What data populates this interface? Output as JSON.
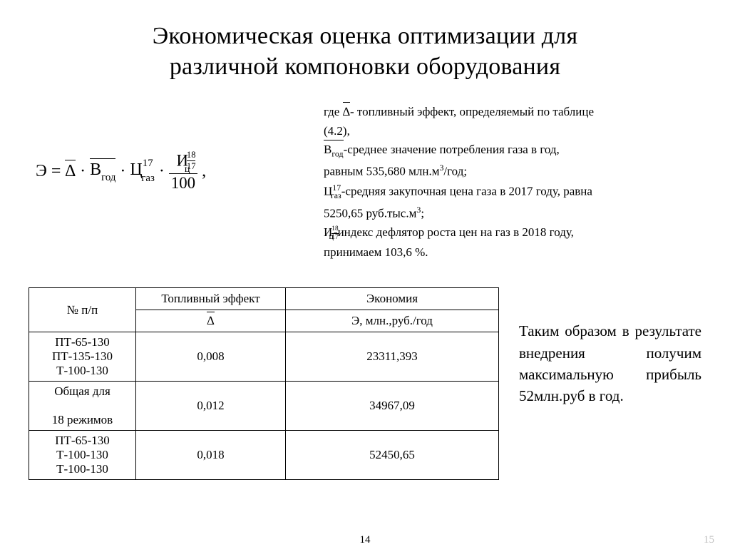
{
  "title_line1": "Экономическая оценка оптимизации для",
  "title_line2": "различной компоновки оборудования",
  "formula": {
    "E": "Э",
    "eq": "=",
    "Delta": "∆",
    "dot": "·",
    "B": "В",
    "B_sub": "год",
    "C": "Ц",
    "C_sub": "газ",
    "C_sup": "17",
    "I": "И",
    "I_sub": "ц",
    "I_sup_top": "18",
    "I_sup_bot": "17",
    "den": "100",
    "comma": ","
  },
  "legend": {
    "l1a": "где ",
    "l1b": "- топливный эффект, определяемый по таблице",
    "l2": "(4.2),",
    "l3a": "-среднее значение потребления газа в год,",
    "l4a": "равным 535,680 млн.м",
    "l4b": "/год;",
    "l5a": "-средняя закупочная цена газа в 2017 году, равна",
    "l6a": "5250,65 руб.тыс.м",
    "l6b": ";",
    "l7a": "-индекс дефлятор роста цен на газ в 2018 году,",
    "l8": "принимаем 103,6 %.",
    "sup3": "3"
  },
  "table": {
    "h_np": "№ п/п",
    "h_fuel": "Топливный эффект",
    "h_econ": "Экономия",
    "h_delta": "∆",
    "h_E": "Э, млн.,руб./год",
    "rows": [
      {
        "c0": [
          "ПТ-65-130",
          "ПТ-135-130",
          "Т-100-130"
        ],
        "c1": "0,008",
        "c2": "23311,393"
      },
      {
        "c0": [
          "Общая для",
          "18 режимов"
        ],
        "c1": "0,012",
        "c2": "34967,09"
      },
      {
        "c0": [
          "ПТ-65-130",
          "Т-100-130",
          "Т-100-130"
        ],
        "c1": "0,018",
        "c2": "52450,65"
      }
    ]
  },
  "conclusion": "Таким образом в результате внедрения получим максимальную прибыль 52млн.руб в год.",
  "page_center": "14",
  "page_right": "15"
}
